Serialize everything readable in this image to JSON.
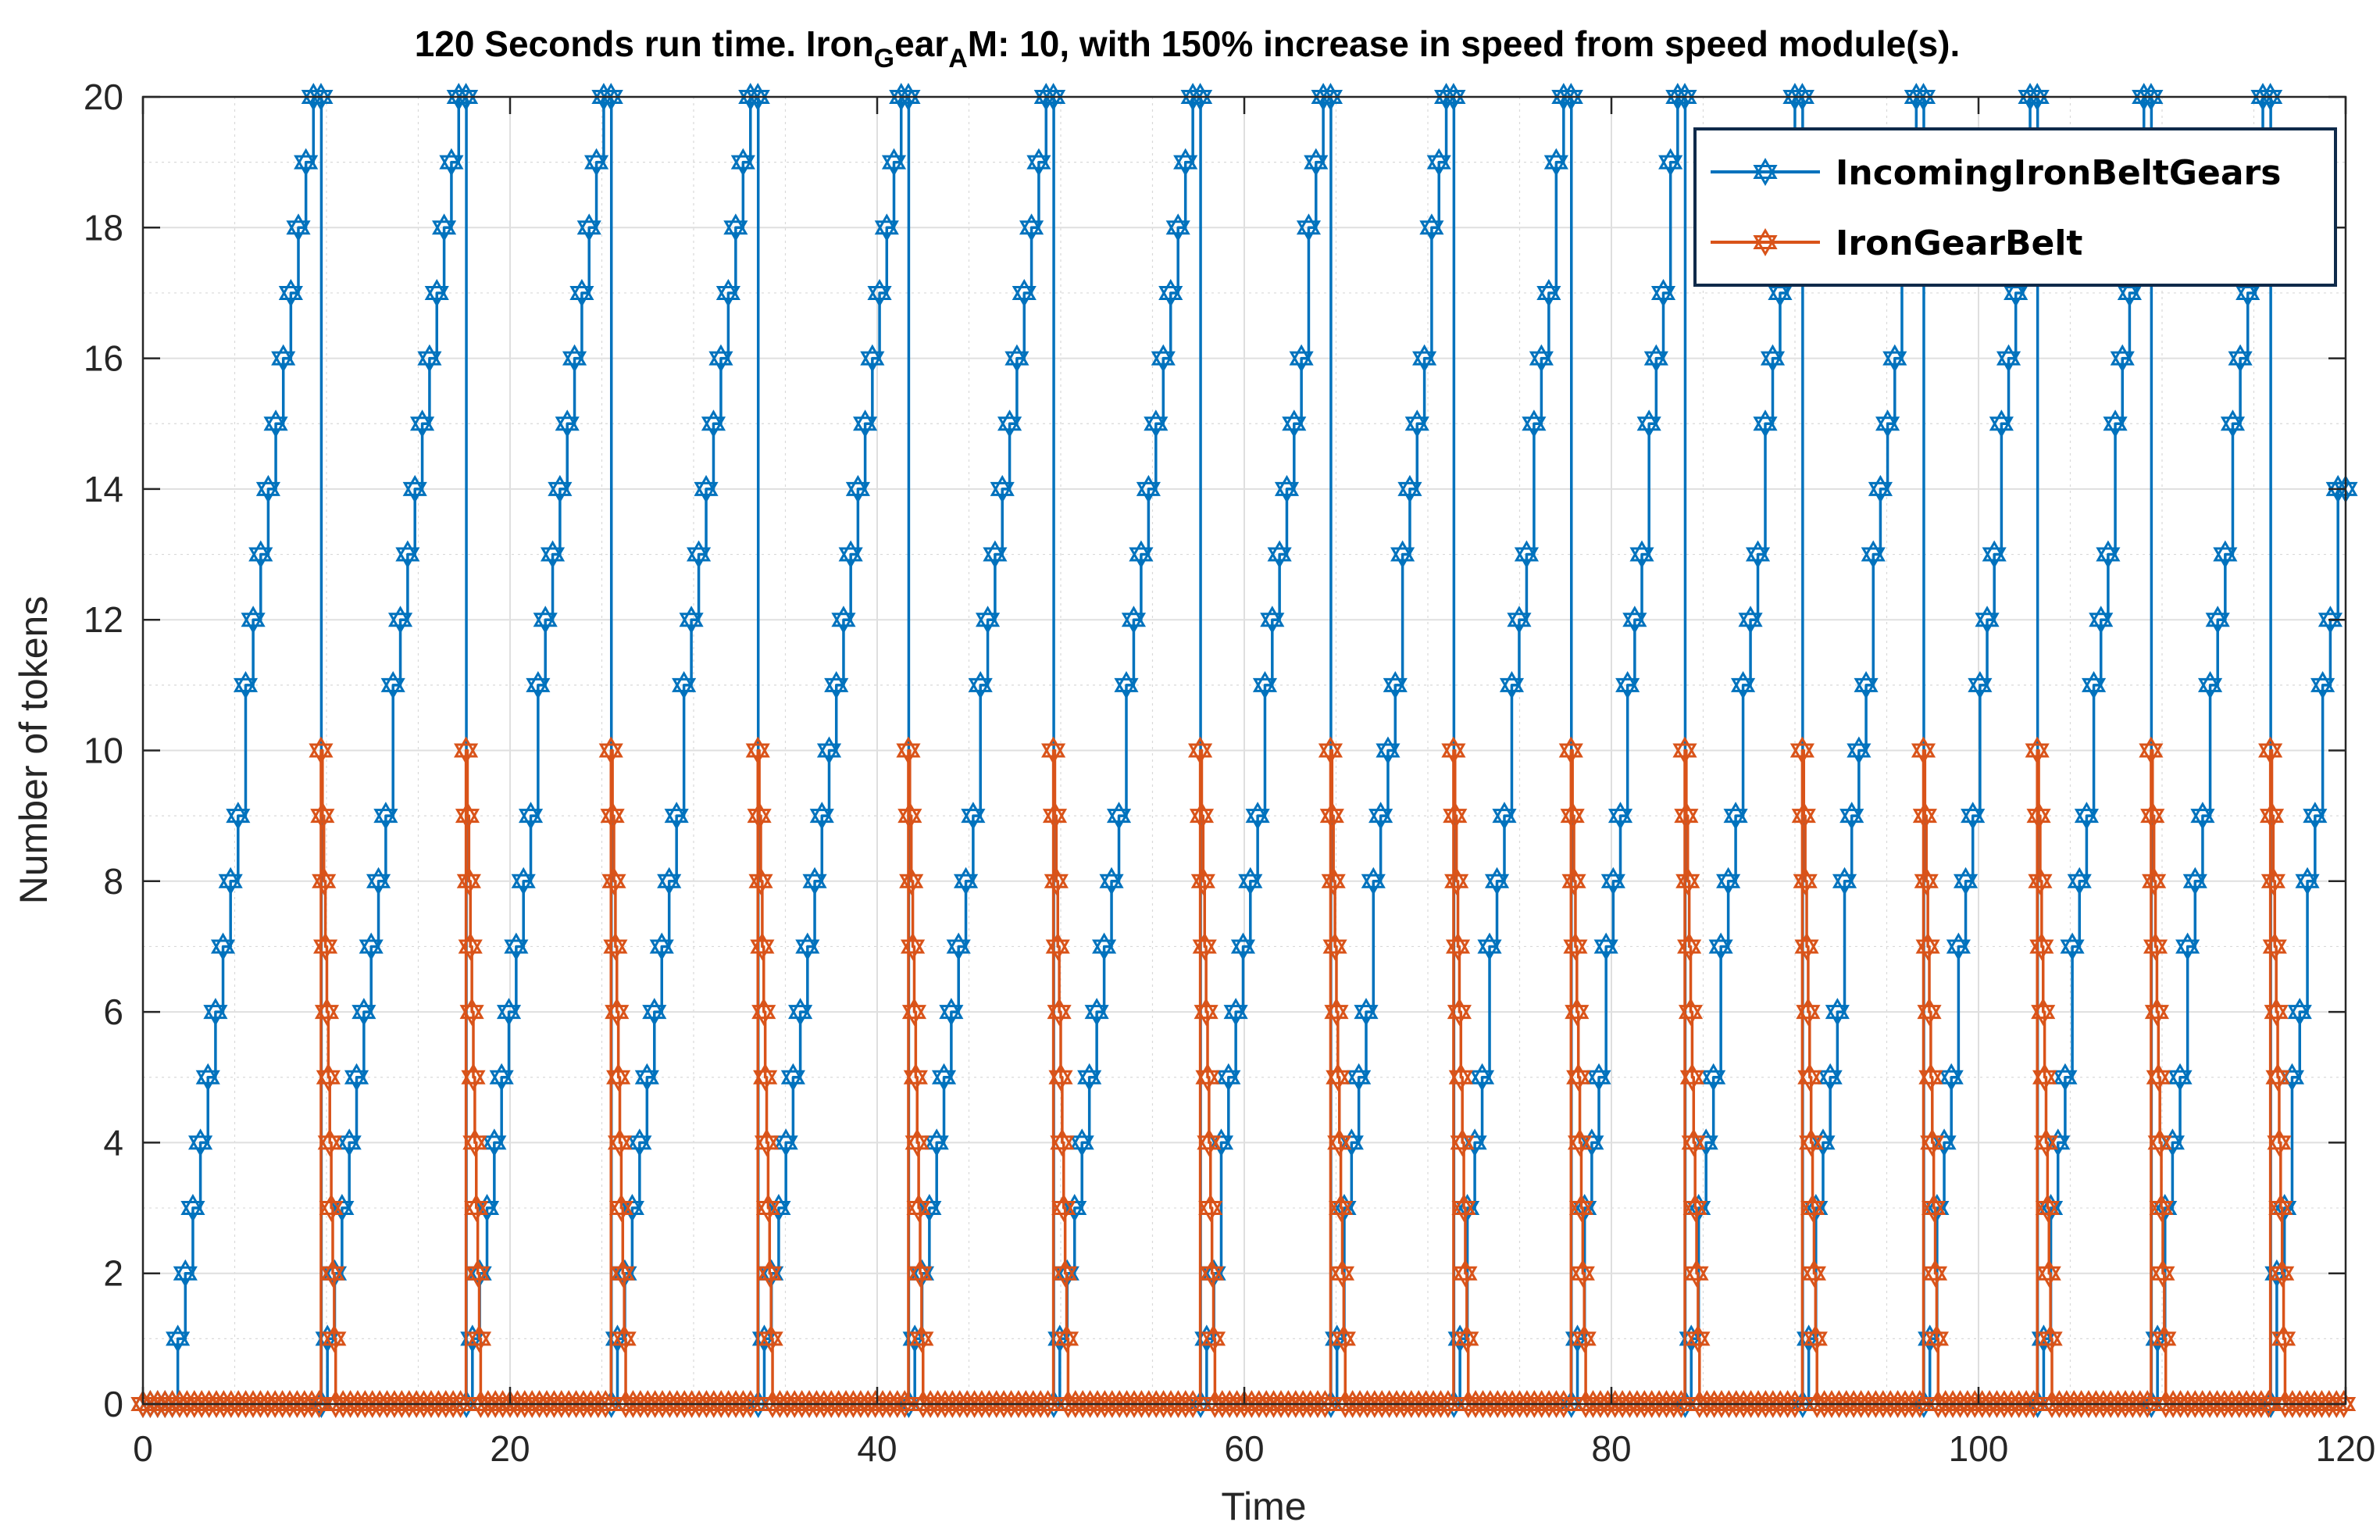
{
  "chart_data": {
    "type": "line",
    "title_parts": {
      "lead": "120 Seconds run time. Iron",
      "sub_g": "G",
      "mid": "ear",
      "sub_a": "A",
      "tail": "M: 10, with 150% increase in speed from speed module(s)."
    },
    "xlabel": "Time",
    "ylabel": "Number of tokens",
    "xlim": [
      0,
      120
    ],
    "ylim": [
      0,
      20
    ],
    "xticks": [
      0,
      20,
      40,
      60,
      80,
      100,
      120
    ],
    "yticks": [
      0,
      2,
      4,
      6,
      8,
      10,
      12,
      14,
      16,
      18,
      20
    ],
    "grid": true,
    "minor_grid": true,
    "legend_position": "top-right",
    "marker": "hexagram",
    "series": [
      {
        "name": "IncomingIronBeltGears",
        "color": "#0072BD",
        "start_time": 1.9,
        "step_interval": 0.4,
        "resets": [
          9.7,
          17.6,
          25.5,
          33.5,
          41.7,
          49.6,
          57.6,
          64.7,
          71.4,
          77.8,
          84.0,
          90.4,
          97.0,
          103.2,
          109.4,
          115.9
        ],
        "peaks": [
          20,
          20,
          20,
          20,
          20,
          20,
          20,
          20,
          20,
          20,
          20,
          20,
          20,
          20,
          20,
          20
        ],
        "final_value": 14,
        "end_time": 120
      },
      {
        "name": "IronGearBelt",
        "color": "#D95319",
        "drop_offset": 0.8,
        "peak": 10
      }
    ]
  }
}
